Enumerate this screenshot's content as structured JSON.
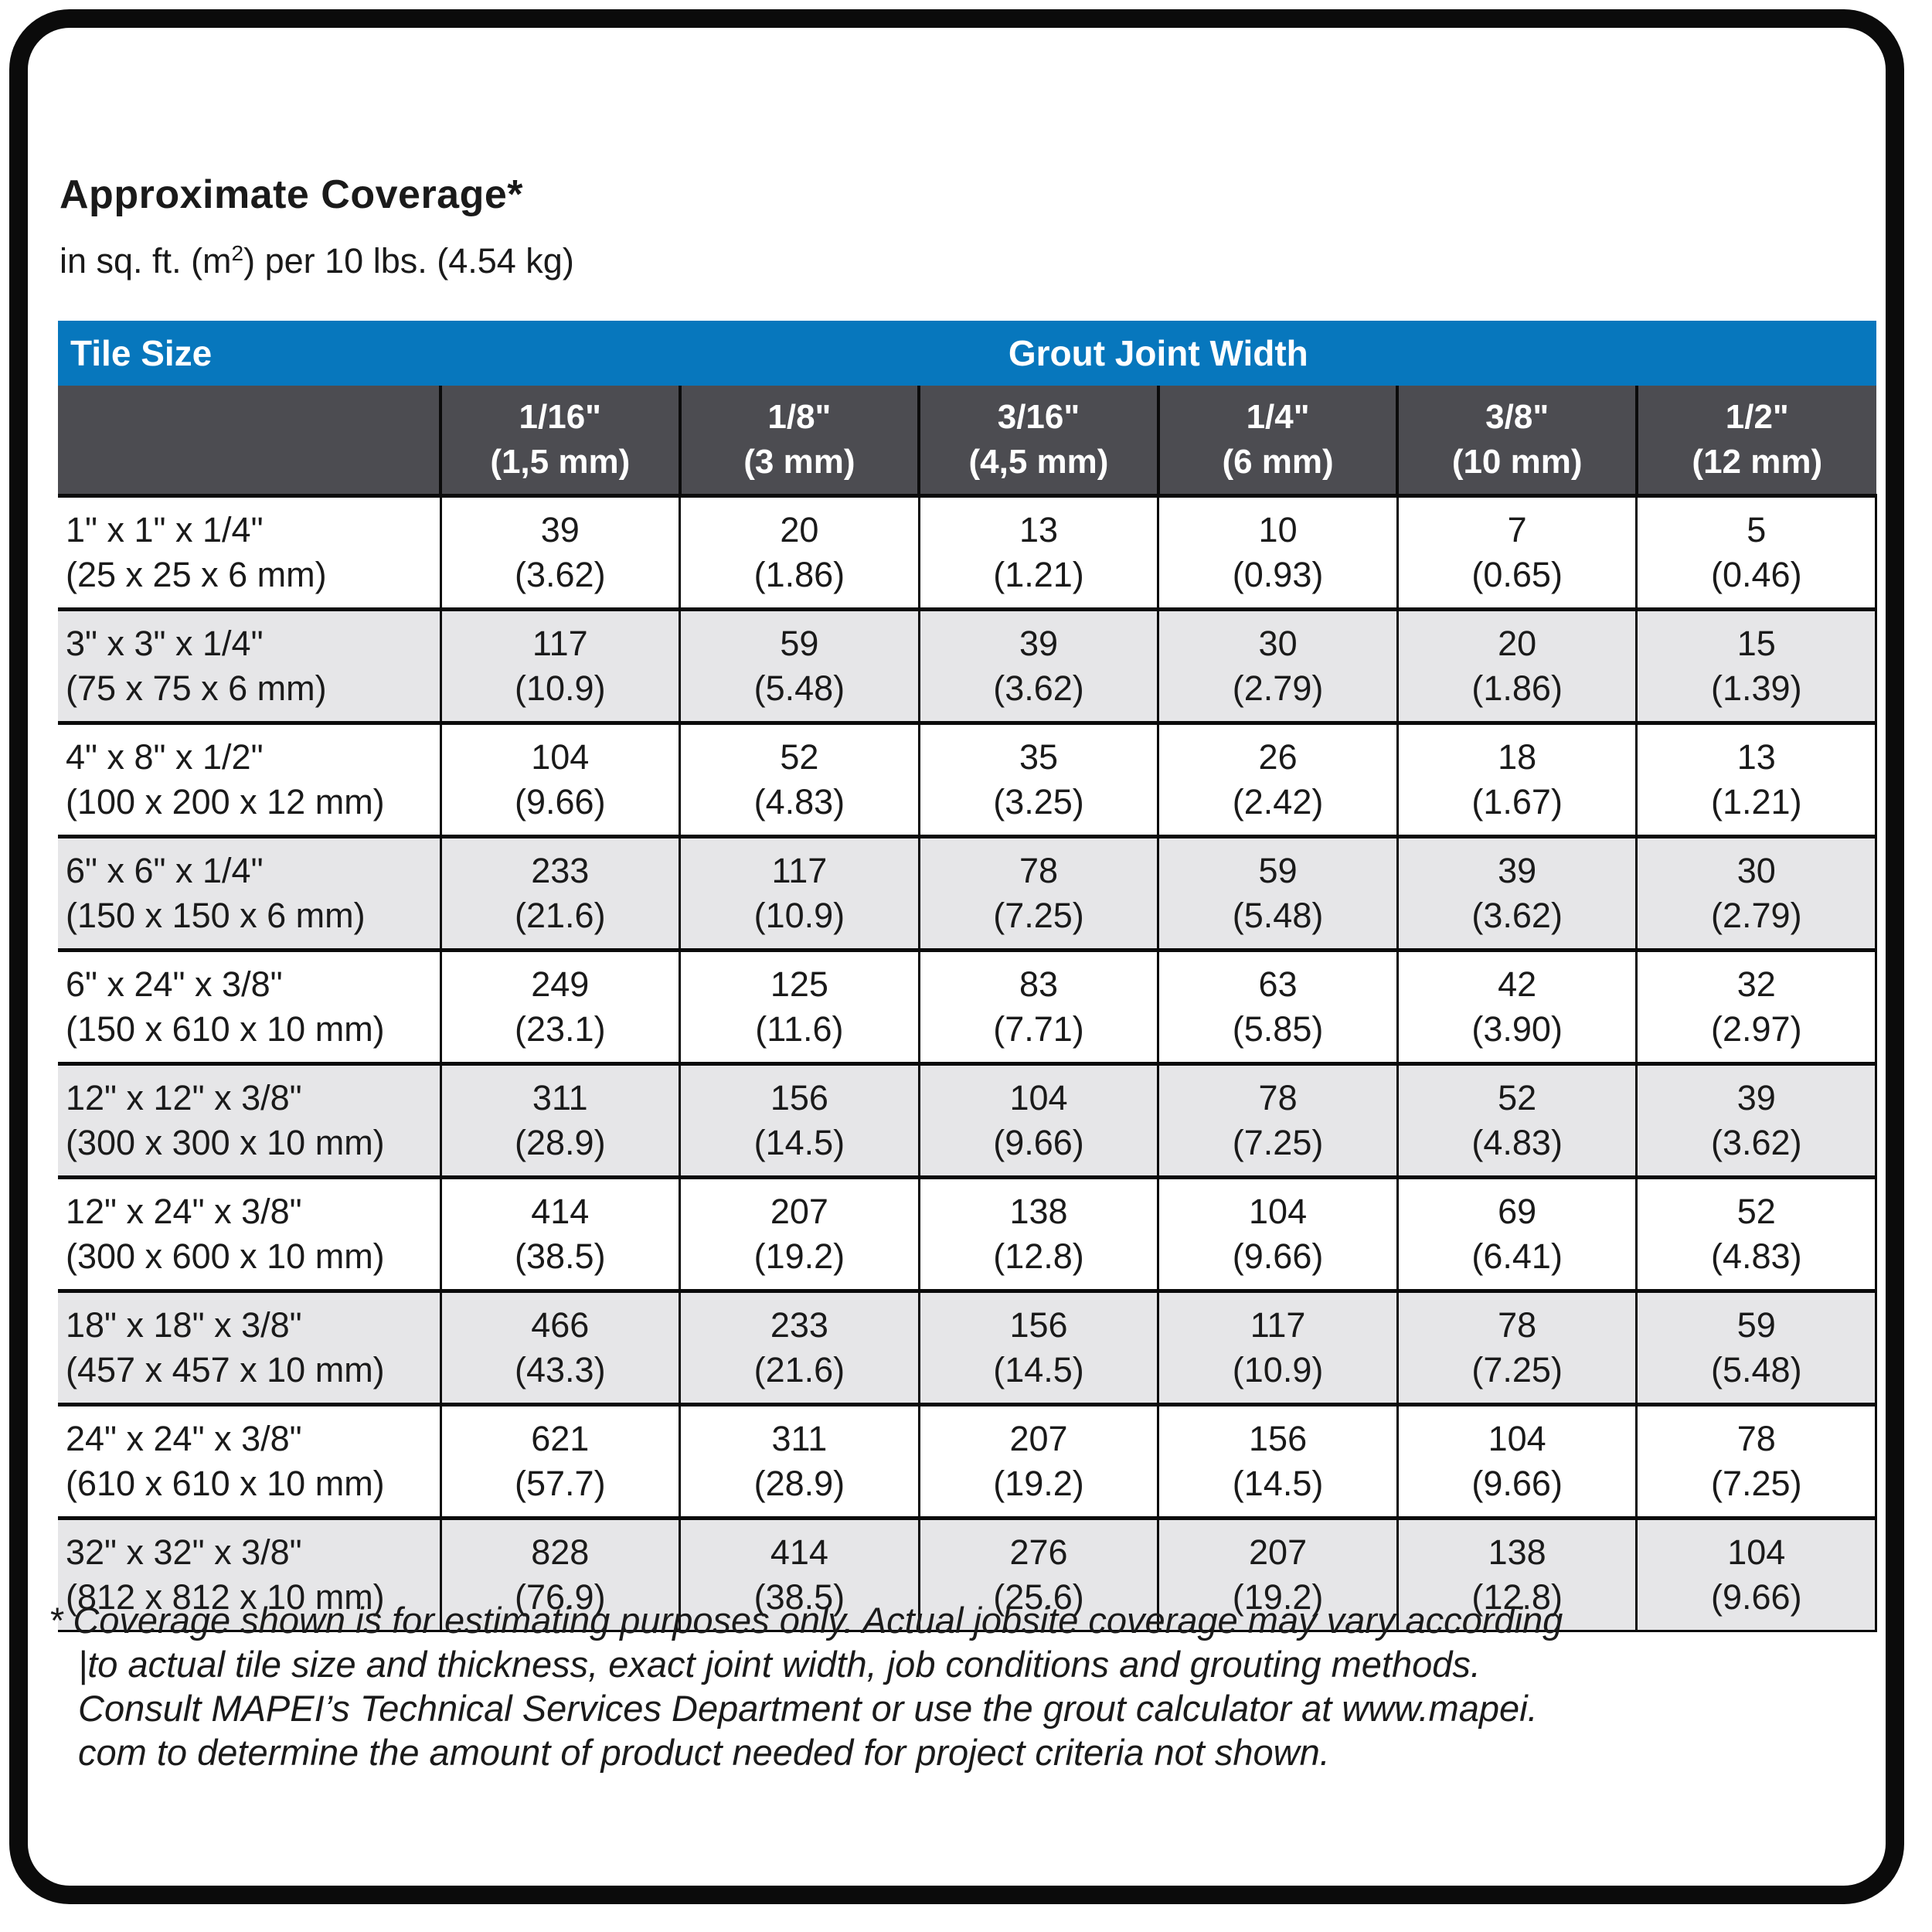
{
  "page": {
    "title": "Approximate Coverage*",
    "subtitle_prefix": "in sq. ft. (m",
    "subtitle_sup": "2",
    "subtitle_suffix": ") per 10 lbs. (4.54 kg)"
  },
  "table": {
    "corner_header": "Tile Size",
    "group_header": "Grout Joint Width",
    "columns": [
      {
        "inch": "1/16\"",
        "mm": "(1,5 mm)"
      },
      {
        "inch": "1/8\"",
        "mm": "(3 mm)"
      },
      {
        "inch": "3/16\"",
        "mm": "(4,5 mm)"
      },
      {
        "inch": "1/4\"",
        "mm": "(6 mm)"
      },
      {
        "inch": "3/8\"",
        "mm": "(10 mm)"
      },
      {
        "inch": "1/2\"",
        "mm": "(12 mm)"
      }
    ],
    "rows": [
      {
        "size_in": "1\" x 1\" x 1/4\"",
        "size_mm": "(25 x 25 x 6 mm)",
        "cells": [
          [
            "39",
            "(3.62)"
          ],
          [
            "20",
            "(1.86)"
          ],
          [
            "13",
            "(1.21)"
          ],
          [
            "10",
            "(0.93)"
          ],
          [
            "7",
            "(0.65)"
          ],
          [
            "5",
            "(0.46)"
          ]
        ]
      },
      {
        "size_in": "3\" x 3\" x 1/4\"",
        "size_mm": "(75 x 75 x 6 mm)",
        "cells": [
          [
            "117",
            "(10.9)"
          ],
          [
            "59",
            "(5.48)"
          ],
          [
            "39",
            "(3.62)"
          ],
          [
            "30",
            "(2.79)"
          ],
          [
            "20",
            "(1.86)"
          ],
          [
            "15",
            "(1.39)"
          ]
        ]
      },
      {
        "size_in": "4\" x 8\" x 1/2\"",
        "size_mm": "(100 x 200 x 12 mm)",
        "cells": [
          [
            "104",
            "(9.66)"
          ],
          [
            "52",
            "(4.83)"
          ],
          [
            "35",
            "(3.25)"
          ],
          [
            "26",
            "(2.42)"
          ],
          [
            "18",
            "(1.67)"
          ],
          [
            "13",
            "(1.21)"
          ]
        ]
      },
      {
        "size_in": "6\" x 6\" x 1/4\"",
        "size_mm": "(150 x 150 x 6 mm)",
        "cells": [
          [
            "233",
            "(21.6)"
          ],
          [
            "117",
            "(10.9)"
          ],
          [
            "78",
            "(7.25)"
          ],
          [
            "59",
            "(5.48)"
          ],
          [
            "39",
            "(3.62)"
          ],
          [
            "30",
            "(2.79)"
          ]
        ]
      },
      {
        "size_in": "6\" x 24\" x 3/8\"",
        "size_mm": "(150 x 610 x 10 mm)",
        "cells": [
          [
            "249",
            "(23.1)"
          ],
          [
            "125",
            "(11.6)"
          ],
          [
            "83",
            "(7.71)"
          ],
          [
            "63",
            "(5.85)"
          ],
          [
            "42",
            "(3.90)"
          ],
          [
            "32",
            "(2.97)"
          ]
        ]
      },
      {
        "size_in": "12\" x 12\" x 3/8\"",
        "size_mm": "(300 x 300 x 10 mm)",
        "cells": [
          [
            "311",
            "(28.9)"
          ],
          [
            "156",
            "(14.5)"
          ],
          [
            "104",
            "(9.66)"
          ],
          [
            "78",
            "(7.25)"
          ],
          [
            "52",
            "(4.83)"
          ],
          [
            "39",
            "(3.62)"
          ]
        ]
      },
      {
        "size_in": "12\" x 24\" x 3/8\"",
        "size_mm": "(300 x 600 x 10 mm)",
        "cells": [
          [
            "414",
            "(38.5)"
          ],
          [
            "207",
            "(19.2)"
          ],
          [
            "138",
            "(12.8)"
          ],
          [
            "104",
            "(9.66)"
          ],
          [
            "69",
            "(6.41)"
          ],
          [
            "52",
            "(4.83)"
          ]
        ]
      },
      {
        "size_in": "18\" x 18\" x 3/8\"",
        "size_mm": "(457 x 457 x 10 mm)",
        "cells": [
          [
            "466",
            "(43.3)"
          ],
          [
            "233",
            "(21.6)"
          ],
          [
            "156",
            "(14.5)"
          ],
          [
            "117",
            "(10.9)"
          ],
          [
            "78",
            "(7.25)"
          ],
          [
            "59",
            "(5.48)"
          ]
        ]
      },
      {
        "size_in": "24\" x 24\" x 3/8\"",
        "size_mm": "(610 x 610 x 10 mm)",
        "cells": [
          [
            "621",
            "(57.7)"
          ],
          [
            "311",
            "(28.9)"
          ],
          [
            "207",
            "(19.2)"
          ],
          [
            "156",
            "(14.5)"
          ],
          [
            "104",
            "(9.66)"
          ],
          [
            "78",
            "(7.25)"
          ]
        ]
      },
      {
        "size_in": "32\" x 32\" x 3/8\"",
        "size_mm": "(812 x 812 x 10 mm)",
        "cells": [
          [
            "828",
            "(76.9)"
          ],
          [
            "414",
            "(38.5)"
          ],
          [
            "276",
            "(25.6)"
          ],
          [
            "207",
            "(19.2)"
          ],
          [
            "138",
            "(12.8)"
          ],
          [
            "104",
            "(9.66)"
          ]
        ]
      }
    ]
  },
  "footnote": {
    "lines": [
      "* Coverage shown is for estimating purposes only. Actual jobsite coverage may vary according",
      "|to actual tile size and thickness, exact joint width, job conditions and grouting methods.",
      "Consult MAPEI’s Technical Services Department or use the grout calculator at www.mapei.",
      "com to determine the amount of product needed for project criteria not shown."
    ]
  },
  "colors": {
    "header_blue": "#0777bd",
    "header_dark_gray": "#4c4c51",
    "row_alt_gray": "#e6e6e8",
    "border_black": "#0b0b0b"
  }
}
